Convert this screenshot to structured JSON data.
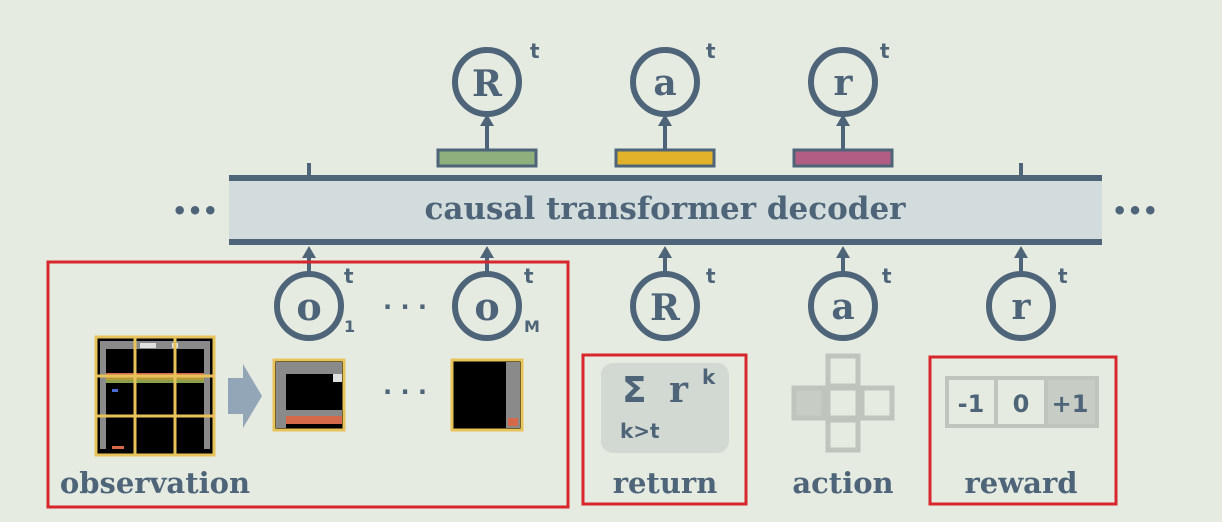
{
  "decoder": {
    "label": "causal transformer decoder",
    "ellipsis_left": "•••",
    "ellipsis_right": "•••"
  },
  "outputs": [
    {
      "symbol": "R",
      "sup": "t",
      "head_color": "#8fb07c"
    },
    {
      "symbol": "a",
      "sup": "t",
      "head_color": "#e2b32a"
    },
    {
      "symbol": "r",
      "sup": "t",
      "head_color": "#b25e84"
    }
  ],
  "inputs": [
    {
      "symbol": "o",
      "sup": "t",
      "sub": "1"
    },
    {
      "symbol": "o",
      "sup": "t",
      "sub": "M"
    },
    {
      "symbol": "R",
      "sup": "t",
      "sub": ""
    },
    {
      "symbol": "a",
      "sup": "t",
      "sub": ""
    },
    {
      "symbol": "r",
      "sup": "t",
      "sub": ""
    }
  ],
  "input_dots": "· · ·",
  "observation": {
    "label": "observation",
    "dots": "· · ·"
  },
  "return_box": {
    "label": "return",
    "sigma": "Σ",
    "r": "r",
    "sup": "k",
    "sub": "k>t"
  },
  "action": {
    "label": "action"
  },
  "reward": {
    "label": "reward",
    "values": [
      "-1",
      "0",
      "+1"
    ]
  },
  "colors": {
    "node": "#4e6478",
    "highlight": "#d8272c",
    "frame": "#e8c35a",
    "decoder_fill": "#d2dcdc"
  }
}
